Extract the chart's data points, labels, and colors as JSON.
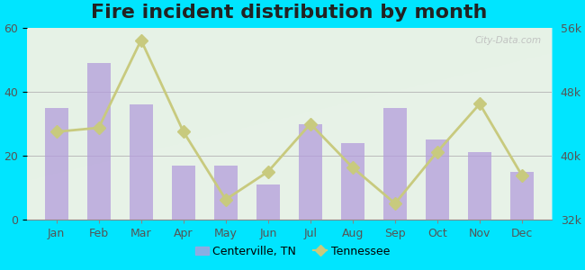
{
  "title": "Fire incident distribution by month",
  "months": [
    "Jan",
    "Feb",
    "Mar",
    "Apr",
    "May",
    "Jun",
    "Jul",
    "Aug",
    "Sep",
    "Oct",
    "Nov",
    "Dec"
  ],
  "centerville_values": [
    35,
    49,
    36,
    17,
    17,
    11,
    30,
    24,
    35,
    25,
    21,
    15
  ],
  "tennessee_values": [
    43000,
    43500,
    54500,
    43000,
    34500,
    38000,
    44000,
    38500,
    34000,
    40500,
    46500,
    37500
  ],
  "bar_color": "#b39ddb",
  "line_color": "#c8ca7e",
  "bg_outer": "#00e5ff",
  "bg_inner": "#e8f5e9",
  "left_ylim": [
    0,
    60
  ],
  "left_yticks": [
    0,
    20,
    40,
    60
  ],
  "right_ylim": [
    32000,
    56000
  ],
  "right_yticks": [
    32000,
    40000,
    48000,
    56000
  ],
  "right_yticklabels": [
    "32k",
    "40k",
    "48k",
    "56k"
  ],
  "title_fontsize": 16,
  "legend_centerville": "Centerville, TN",
  "legend_tennessee": "Tennessee",
  "watermark": "City-Data.com"
}
